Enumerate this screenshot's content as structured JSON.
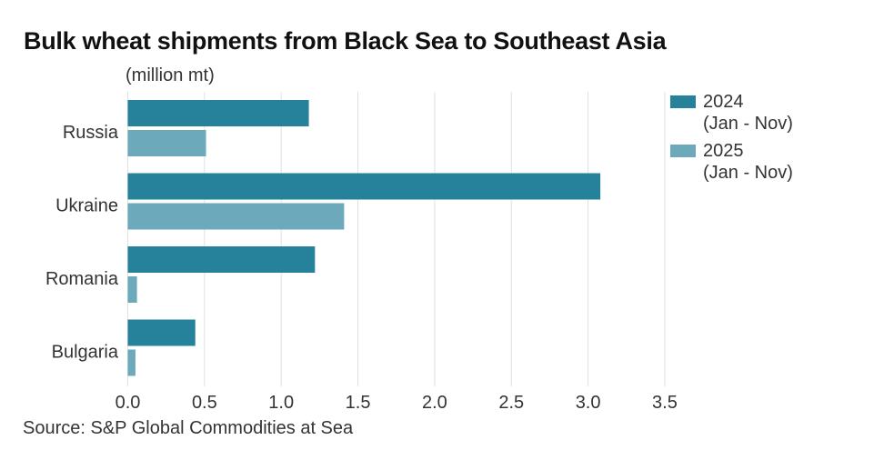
{
  "chart_data": {
    "type": "bar",
    "orientation": "horizontal",
    "title": "Bulk wheat shipments from Black Sea to Southeast Asia",
    "units": "(million mt)",
    "categories": [
      "Russia",
      "Ukraine",
      "Romania",
      "Bulgaria"
    ],
    "series": [
      {
        "name": "2024",
        "sublabel": "(Jan - Nov)",
        "color": "#25829a",
        "values": [
          1.18,
          3.08,
          1.22,
          0.44
        ]
      },
      {
        "name": "2025",
        "sublabel": "(Jan - Nov)",
        "color": "#6caabb",
        "values": [
          0.51,
          1.41,
          0.06,
          0.05
        ]
      }
    ],
    "xlim": [
      0,
      3.5
    ],
    "xticks": [
      "0.0",
      "0.5",
      "1.0",
      "1.5",
      "2.0",
      "2.5",
      "3.0",
      "3.5"
    ],
    "grid": true,
    "legend": "right",
    "source": "Source: S&P Global Commodities at Sea"
  }
}
